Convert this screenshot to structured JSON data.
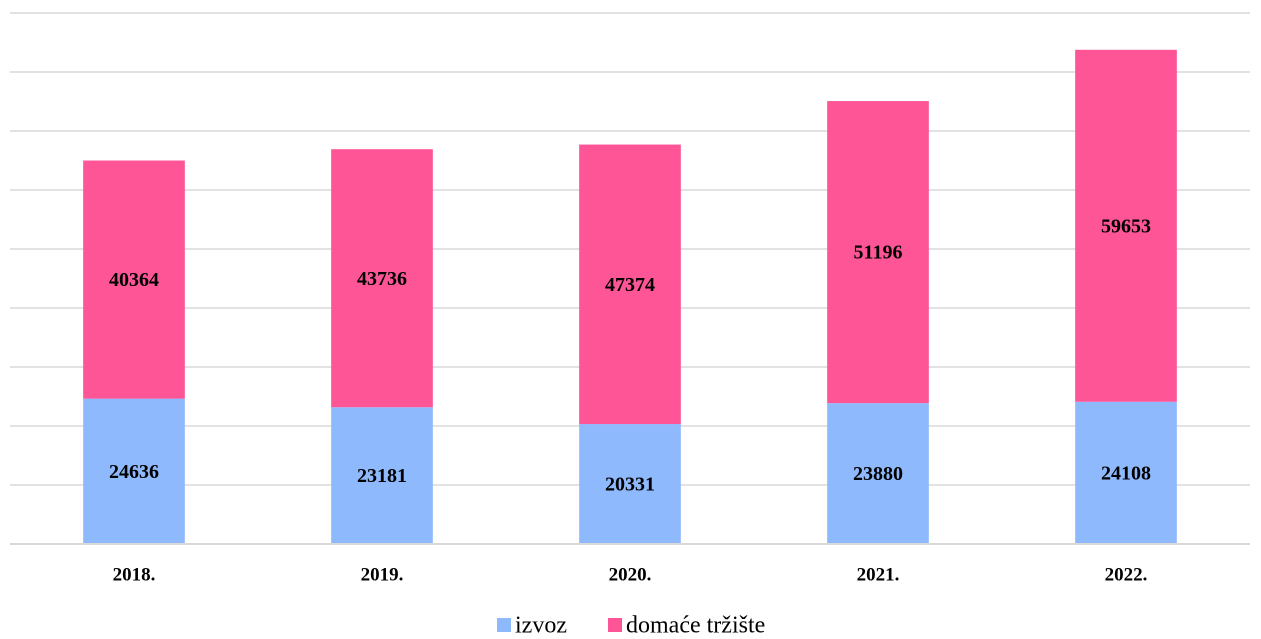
{
  "chart_data": {
    "type": "bar",
    "stacked": true,
    "categories": [
      "2018.",
      "2019.",
      "2020.",
      "2021.",
      "2022."
    ],
    "series": [
      {
        "name": "izvoz",
        "color": "#8fb9fd",
        "values": [
          24636,
          23181,
          20331,
          23880,
          24108
        ]
      },
      {
        "name": "domaće tržište",
        "color": "#fe5597",
        "values": [
          40364,
          43736,
          47374,
          51196,
          59653
        ]
      }
    ],
    "ylim": [
      0,
      90000
    ],
    "yticks": [
      0,
      10000,
      20000,
      30000,
      40000,
      50000,
      60000,
      70000,
      80000,
      90000
    ],
    "grid": true,
    "legend": "bottom"
  }
}
